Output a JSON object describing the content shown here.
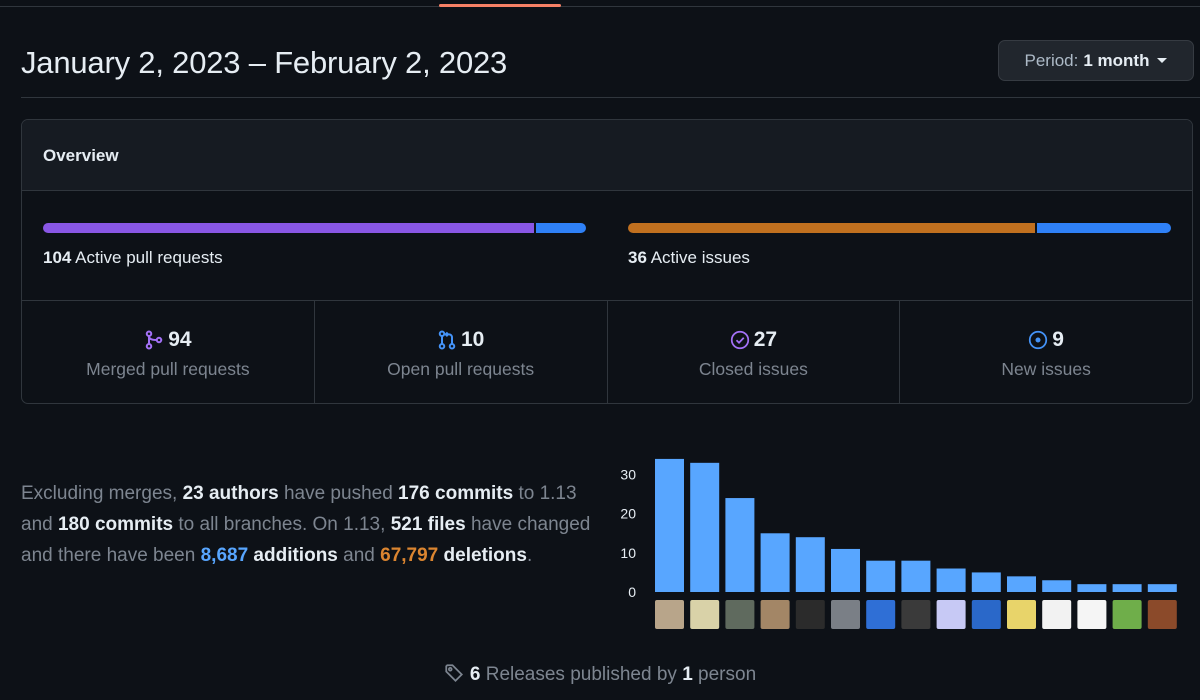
{
  "header": {
    "date_range": "January 2, 2023 – February 2, 2023",
    "period_label": "Period:",
    "period_value": "1 month"
  },
  "overview": {
    "title": "Overview",
    "pull_requests": {
      "count": "104",
      "label": "Active pull requests",
      "merged_fraction": 0.904,
      "colors": [
        "#8957e5",
        "#2f81f7"
      ]
    },
    "issues": {
      "count": "36",
      "label": "Active issues",
      "closed_fraction": 0.75,
      "colors": [
        "#c0701f",
        "#2f81f7"
      ]
    },
    "stats": [
      {
        "icon": "merge-icon",
        "count": "94",
        "label": "Merged pull requests",
        "color": "#a371f7"
      },
      {
        "icon": "pull-request-icon",
        "count": "10",
        "label": "Open pull requests",
        "color": "#4493f8"
      },
      {
        "icon": "issue-closed-icon",
        "count": "27",
        "label": "Closed issues",
        "color": "#a371f7"
      },
      {
        "icon": "issue-opened-icon",
        "count": "9",
        "label": "New issues",
        "color": "#4493f8"
      }
    ]
  },
  "commits_summary": {
    "t1": "Excluding merges, ",
    "authors": "23 authors",
    "t2": " have pushed ",
    "commits_branch": "176 commits",
    "t3": " to 1.13 and ",
    "commits_all": "180 commits",
    "t4": " to all branches. On 1.13, ",
    "files": "521 files",
    "t5": " have changed and there have been ",
    "additions_num": "8,687",
    "additions_word": " additions",
    "t6": " and ",
    "deletions_num": "67,797",
    "deletions_word": " deletions",
    "t7": "."
  },
  "chart_data": {
    "type": "bar",
    "values": [
      34,
      33,
      24,
      15,
      14,
      11,
      8,
      8,
      6,
      5,
      4,
      3,
      2,
      2,
      2
    ],
    "yticks": [
      "30",
      "20",
      "10",
      "0"
    ],
    "ylim": [
      0,
      35
    ],
    "bar_color": "#58a6ff",
    "avatar_colors": [
      "#b8a58a",
      "#d9d2a8",
      "#5f6a5e",
      "#a38666",
      "#2b2b2b",
      "#7a7f86",
      "#2f6fd6",
      "#3a3a3a",
      "#c7c9f5",
      "#2a68c9",
      "#e8d46a",
      "#f2f2f2",
      "#f5f5f5",
      "#6fae4a",
      "#8b4a2a"
    ]
  },
  "releases": {
    "count": "6",
    "text1": " Releases published by ",
    "people": "1",
    "text2": " person"
  }
}
